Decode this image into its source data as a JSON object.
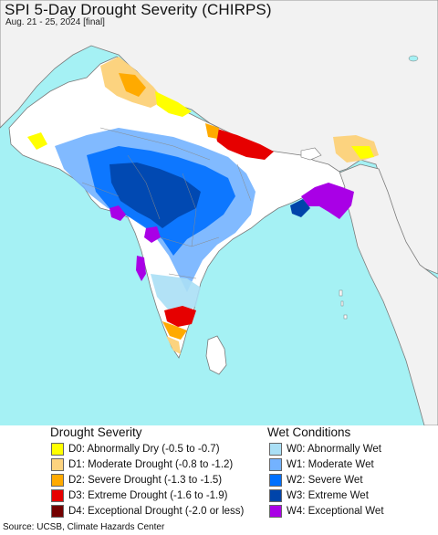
{
  "title": "SPI 5-Day Drought Severity (CHIRPS)",
  "subtitle": "Aug. 21 - 25, 2024 [final]",
  "colors": {
    "ocean": "#a5f1f4",
    "land_neutral": "#ffffff",
    "neighbor_land": "#f2f2f2",
    "border": "#7a7a7a"
  },
  "legend": {
    "drought": {
      "heading": "Drought Severity",
      "items": [
        {
          "code": "D0",
          "label": "D0: Abnormally Dry (-0.5 to -0.7)",
          "color": "#ffff00"
        },
        {
          "code": "D1",
          "label": "D1: Moderate Drought (-0.8 to -1.2)",
          "color": "#fcd37f"
        },
        {
          "code": "D2",
          "label": "D2: Severe Drought (-1.3 to -1.5)",
          "color": "#ffaa00"
        },
        {
          "code": "D3",
          "label": "D3: Extreme Drought (-1.6 to -1.9)",
          "color": "#e60000"
        },
        {
          "code": "D4",
          "label": "D4: Exceptional Drought (-2.0 or less)",
          "color": "#730000"
        }
      ]
    },
    "wet": {
      "heading": "Wet Conditions",
      "items": [
        {
          "code": "W0",
          "label": "W0: Abnormally Wet",
          "color": "#aadff5"
        },
        {
          "code": "W1",
          "label": "W1: Moderate Wet",
          "color": "#73b2ff"
        },
        {
          "code": "W2",
          "label": "W2: Severe Wet",
          "color": "#0070ff"
        },
        {
          "code": "W3",
          "label": "W3: Extreme Wet",
          "color": "#0044aa"
        },
        {
          "code": "W4",
          "label": "W4: Exceptional Wet",
          "color": "#a900e6"
        }
      ]
    }
  },
  "source": "Source: UCSB, Climate Hazards Center"
}
